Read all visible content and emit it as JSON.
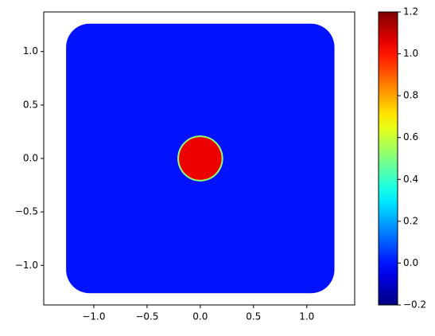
{
  "chart_data": {
    "type": "field",
    "colormap": "jet",
    "xlim": [
      -1.47,
      1.45
    ],
    "ylim": [
      -1.37,
      1.37
    ],
    "xticks": [
      {
        "value": -1.0,
        "label": "−1.0"
      },
      {
        "value": -0.5,
        "label": "−0.5"
      },
      {
        "value": 0.0,
        "label": "0.0"
      },
      {
        "value": 0.5,
        "label": "0.5"
      },
      {
        "value": 1.0,
        "label": "1.0"
      }
    ],
    "yticks": [
      {
        "value": -1.0,
        "label": "−1.0"
      },
      {
        "value": -0.5,
        "label": "−0.5"
      },
      {
        "value": 0.0,
        "label": "0.0"
      },
      {
        "value": 0.5,
        "label": "0.5"
      },
      {
        "value": 1.0,
        "label": "1.0"
      }
    ],
    "regions": [
      {
        "shape": "rounded-square",
        "center": [
          0,
          0
        ],
        "half_width": 1.26,
        "corner_radius": 0.22,
        "value": 0.0
      },
      {
        "shape": "disk",
        "center": [
          0,
          0
        ],
        "radius": 0.2,
        "value": 1.05
      }
    ],
    "colorbar": {
      "lim": [
        -0.2,
        1.2
      ],
      "ticks": [
        {
          "value": -0.2,
          "label": "−0.2"
        },
        {
          "value": 0.0,
          "label": "0.0"
        },
        {
          "value": 0.2,
          "label": "0.2"
        },
        {
          "value": 0.4,
          "label": "0.4"
        },
        {
          "value": 0.6,
          "label": "0.6"
        },
        {
          "value": 0.8,
          "label": "0.8"
        },
        {
          "value": 1.0,
          "label": "1.0"
        },
        {
          "value": 1.2,
          "label": "1.2"
        }
      ]
    }
  }
}
